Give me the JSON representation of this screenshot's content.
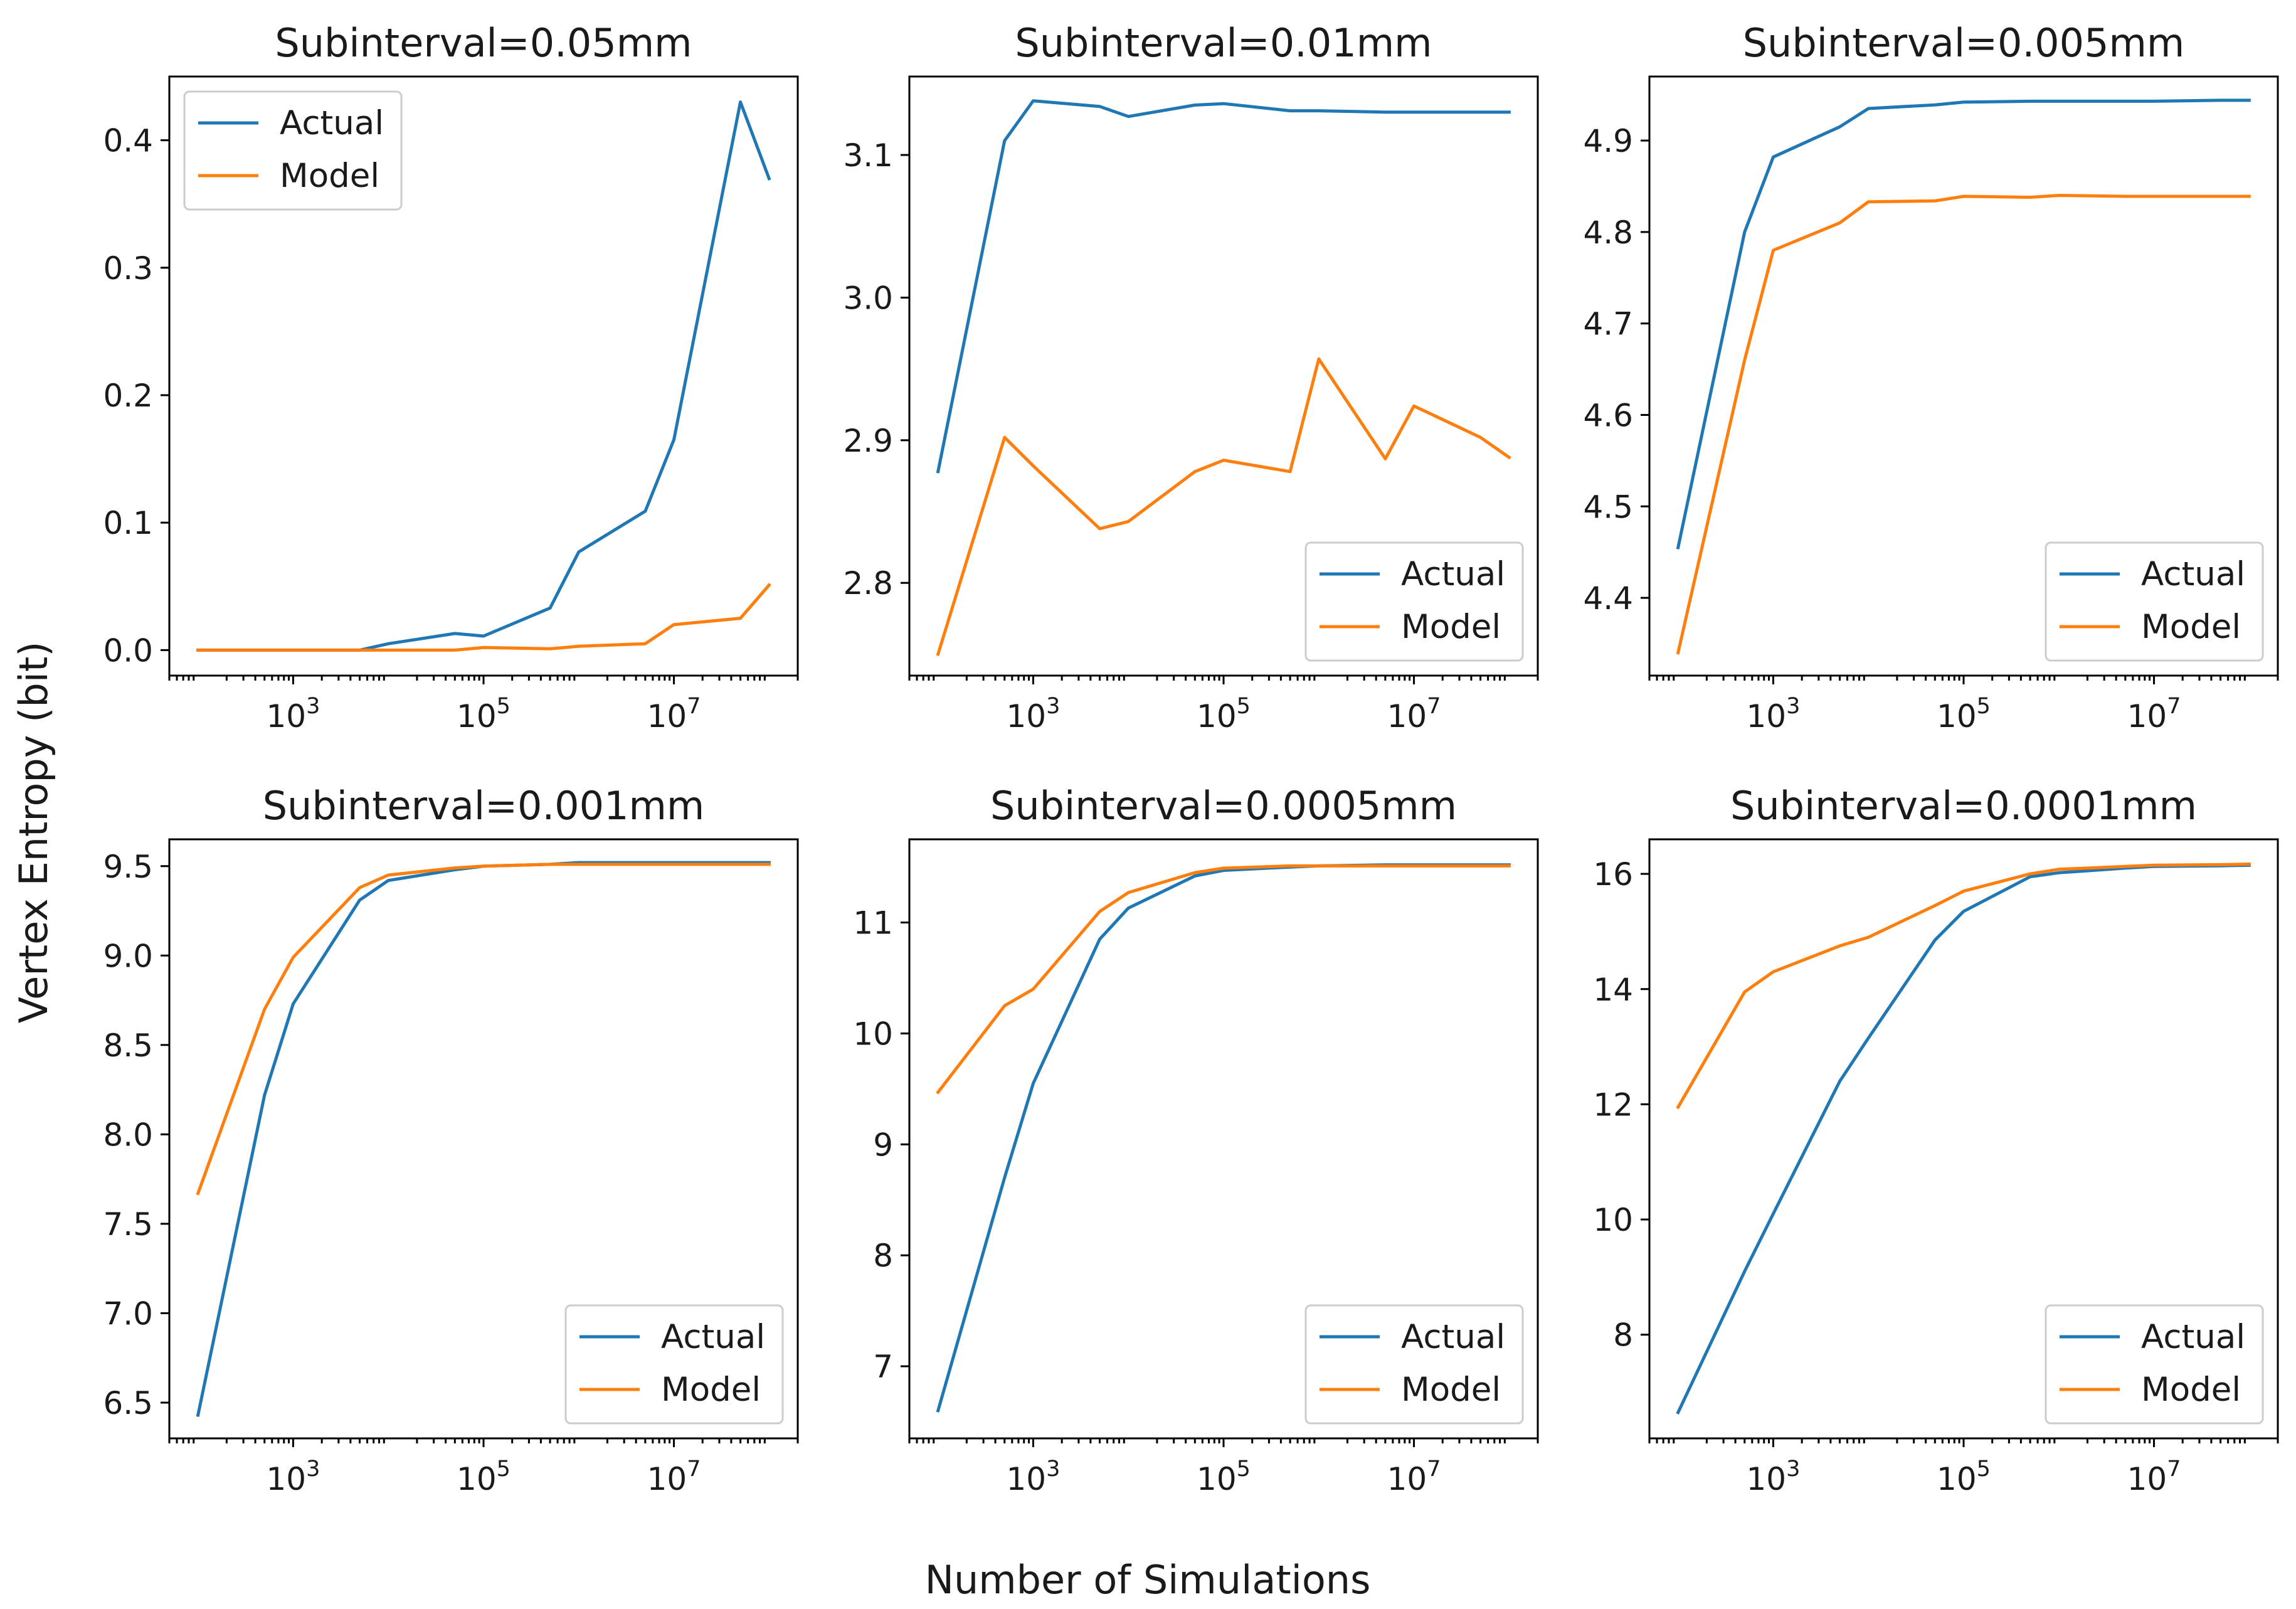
{
  "figure": {
    "ylabel": "Vertex Entropy (bit)",
    "xlabel": "Number of Simulations"
  },
  "colors": {
    "actual": "#1f77b4",
    "model": "#ff7f0e"
  },
  "chart_data": [
    {
      "type": "line",
      "title": "Subinterval=0.05mm",
      "xscale": "log",
      "xlim": [
        50,
        200000000
      ],
      "ylim": [
        -0.02,
        0.45
      ],
      "xticks": [
        1000,
        100000,
        10000000
      ],
      "xtick_labels": [
        "10^3",
        "10^5",
        "10^7"
      ],
      "yticks": [
        0.0,
        0.1,
        0.2,
        0.3,
        0.4
      ],
      "ytick_labels": [
        "0.0",
        "0.1",
        "0.2",
        "0.3",
        "0.4"
      ],
      "legend": "upper left",
      "x": [
        100,
        500,
        1000,
        5000,
        10000,
        50000,
        100000,
        500000,
        1000000,
        5000000,
        10000000,
        50000000,
        100000000
      ],
      "series": [
        {
          "name": "Actual",
          "color": "#1f77b4",
          "values": [
            0.0,
            0.0,
            0.0,
            0.0,
            0.005,
            0.013,
            0.011,
            0.033,
            0.077,
            0.109,
            0.165,
            0.43,
            0.37
          ]
        },
        {
          "name": "Model",
          "color": "#ff7f0e",
          "values": [
            0.0,
            0.0,
            0.0,
            0.0,
            0.0,
            0.0,
            0.002,
            0.001,
            0.003,
            0.005,
            0.02,
            0.025,
            0.051
          ]
        }
      ]
    },
    {
      "type": "line",
      "title": "Subinterval=0.01mm",
      "xscale": "log",
      "xlim": [
        50,
        200000000
      ],
      "ylim": [
        2.735,
        3.155
      ],
      "xticks": [
        1000,
        100000,
        10000000
      ],
      "xtick_labels": [
        "10^3",
        "10^5",
        "10^7"
      ],
      "yticks": [
        2.8,
        2.9,
        3.0,
        3.1
      ],
      "ytick_labels": [
        "2.8",
        "2.9",
        "3.0",
        "3.1"
      ],
      "legend": "lower right",
      "x": [
        100,
        500,
        1000,
        5000,
        10000,
        50000,
        100000,
        500000,
        1000000,
        5000000,
        10000000,
        50000000,
        100000000
      ],
      "series": [
        {
          "name": "Actual",
          "color": "#1f77b4",
          "values": [
            2.878,
            3.11,
            3.138,
            3.134,
            3.127,
            3.135,
            3.136,
            3.131,
            3.131,
            3.13,
            3.13,
            3.13,
            3.13
          ]
        },
        {
          "name": "Model",
          "color": "#ff7f0e",
          "values": [
            2.75,
            2.902,
            2.882,
            2.838,
            2.843,
            2.878,
            2.886,
            2.878,
            2.957,
            2.887,
            2.924,
            2.902,
            2.888
          ]
        }
      ]
    },
    {
      "type": "line",
      "title": "Subinterval=0.005mm",
      "xscale": "log",
      "xlim": [
        50,
        200000000
      ],
      "ylim": [
        4.315,
        4.97
      ],
      "xticks": [
        1000,
        100000,
        10000000
      ],
      "xtick_labels": [
        "10^3",
        "10^5",
        "10^7"
      ],
      "yticks": [
        4.4,
        4.5,
        4.6,
        4.7,
        4.8,
        4.9
      ],
      "ytick_labels": [
        "4.4",
        "4.5",
        "4.6",
        "4.7",
        "4.8",
        "4.9"
      ],
      "legend": "lower right",
      "x": [
        100,
        500,
        1000,
        5000,
        10000,
        50000,
        100000,
        500000,
        1000000,
        5000000,
        10000000,
        50000000,
        100000000
      ],
      "series": [
        {
          "name": "Actual",
          "color": "#1f77b4",
          "values": [
            4.455,
            4.8,
            4.882,
            4.915,
            4.935,
            4.939,
            4.942,
            4.943,
            4.943,
            4.943,
            4.943,
            4.944,
            4.944
          ]
        },
        {
          "name": "Model",
          "color": "#ff7f0e",
          "values": [
            4.34,
            4.66,
            4.78,
            4.81,
            4.833,
            4.834,
            4.839,
            4.838,
            4.84,
            4.839,
            4.839,
            4.839,
            4.839
          ]
        }
      ]
    },
    {
      "type": "line",
      "title": "Subinterval=0.001mm",
      "xscale": "log",
      "xlim": [
        50,
        200000000
      ],
      "ylim": [
        6.3,
        9.65
      ],
      "xticks": [
        1000,
        100000,
        10000000
      ],
      "xtick_labels": [
        "10^3",
        "10^5",
        "10^7"
      ],
      "yticks": [
        6.5,
        7.0,
        7.5,
        8.0,
        8.5,
        9.0,
        9.5
      ],
      "ytick_labels": [
        "6.5",
        "7.0",
        "7.5",
        "8.0",
        "8.5",
        "9.0",
        "9.5"
      ],
      "legend": "lower right",
      "x": [
        100,
        500,
        1000,
        5000,
        10000,
        50000,
        100000,
        500000,
        1000000,
        5000000,
        10000000,
        50000000,
        100000000
      ],
      "series": [
        {
          "name": "Actual",
          "color": "#1f77b4",
          "values": [
            6.43,
            8.22,
            8.73,
            9.31,
            9.42,
            9.48,
            9.5,
            9.51,
            9.52,
            9.52,
            9.52,
            9.52,
            9.52
          ]
        },
        {
          "name": "Model",
          "color": "#ff7f0e",
          "values": [
            7.67,
            8.7,
            8.99,
            9.38,
            9.45,
            9.49,
            9.5,
            9.51,
            9.51,
            9.51,
            9.51,
            9.51,
            9.51
          ]
        }
      ]
    },
    {
      "type": "line",
      "title": "Subinterval=0.0005mm",
      "xscale": "log",
      "xlim": [
        50,
        200000000
      ],
      "ylim": [
        6.35,
        11.75
      ],
      "xticks": [
        1000,
        100000,
        10000000
      ],
      "xtick_labels": [
        "10^3",
        "10^5",
        "10^7"
      ],
      "yticks": [
        7,
        8,
        9,
        10,
        11
      ],
      "ytick_labels": [
        "7",
        "8",
        "9",
        "10",
        "11"
      ],
      "legend": "lower right",
      "x": [
        100,
        500,
        1000,
        5000,
        10000,
        50000,
        100000,
        500000,
        1000000,
        5000000,
        10000000,
        50000000,
        100000000
      ],
      "series": [
        {
          "name": "Actual",
          "color": "#1f77b4",
          "values": [
            6.6,
            8.7,
            9.55,
            10.85,
            11.13,
            11.42,
            11.47,
            11.5,
            11.51,
            11.52,
            11.52,
            11.52,
            11.52
          ]
        },
        {
          "name": "Model",
          "color": "#ff7f0e",
          "values": [
            9.47,
            10.25,
            10.4,
            11.1,
            11.27,
            11.45,
            11.49,
            11.51,
            11.51,
            11.51,
            11.51,
            11.51,
            11.51
          ]
        }
      ]
    },
    {
      "type": "line",
      "title": "Subinterval=0.0001mm",
      "xscale": "log",
      "xlim": [
        50,
        200000000
      ],
      "ylim": [
        6.2,
        16.6
      ],
      "xticks": [
        1000,
        100000,
        10000000
      ],
      "xtick_labels": [
        "10^3",
        "10^5",
        "10^7"
      ],
      "yticks": [
        8,
        10,
        12,
        14,
        16
      ],
      "ytick_labels": [
        "8",
        "10",
        "12",
        "14",
        "16"
      ],
      "legend": "lower right",
      "x": [
        100,
        500,
        1000,
        5000,
        10000,
        50000,
        100000,
        500000,
        1000000,
        5000000,
        10000000,
        50000000,
        100000000
      ],
      "series": [
        {
          "name": "Actual",
          "color": "#1f77b4",
          "values": [
            6.65,
            9.1,
            10.1,
            12.4,
            13.15,
            14.85,
            15.35,
            15.95,
            16.02,
            16.1,
            16.13,
            16.14,
            16.15
          ]
        },
        {
          "name": "Model",
          "color": "#ff7f0e",
          "values": [
            11.95,
            13.95,
            14.3,
            14.75,
            14.9,
            15.45,
            15.7,
            16.0,
            16.08,
            16.13,
            16.15,
            16.16,
            16.17
          ]
        }
      ]
    }
  ]
}
